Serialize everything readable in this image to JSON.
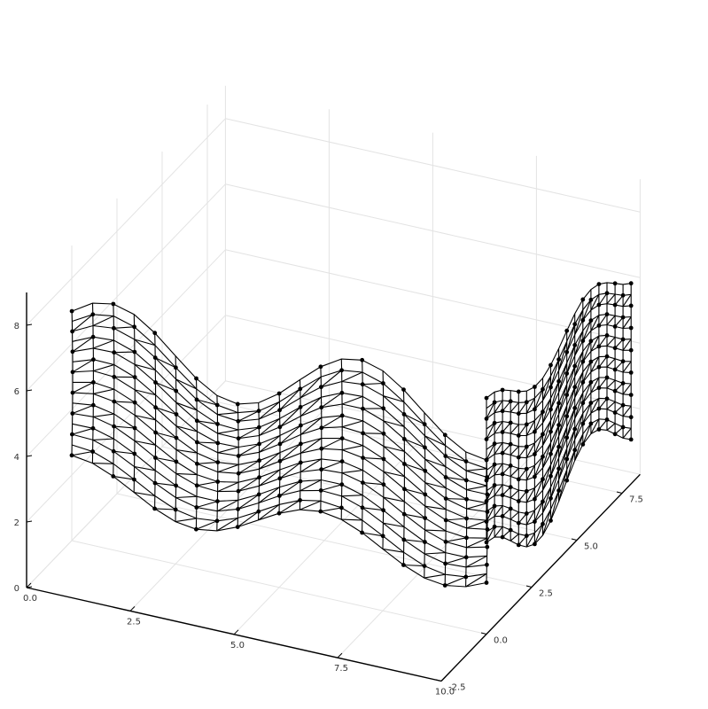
{
  "chart_data": {
    "type": "wireframe-surface-3d",
    "title": "",
    "xlabel": "",
    "ylabel": "",
    "zlabel": "",
    "x_ticks": [
      "0.0",
      "2.5",
      "5.0",
      "7.5",
      "10.0"
    ],
    "y_ticks": [
      "-2.5",
      "0.0",
      "2.5",
      "5.0",
      "7.5"
    ],
    "z_ticks": [
      "0",
      "2",
      "4",
      "6",
      "8"
    ],
    "xlim": [
      0,
      10
    ],
    "ylim": [
      -2.5,
      8.5
    ],
    "zlim": [
      0,
      9
    ],
    "grid": true,
    "legend": "none",
    "markers": true,
    "line_color": "#000000",
    "series": [
      {
        "surface": "vertical sheet along x at y = 0, top edge z = 5 + cos(x)",
        "x_range": [
          0,
          10
        ],
        "y_value": 0,
        "z_range": [
          1.2,
          7.8
        ]
      },
      {
        "surface": "vertical sheet along y at x = 10, top edge z = 6.5 + 0.7*cos(y)",
        "y_range": [
          0,
          8
        ],
        "x_value": 10,
        "z_range": [
          1.2,
          7.6
        ]
      }
    ]
  }
}
